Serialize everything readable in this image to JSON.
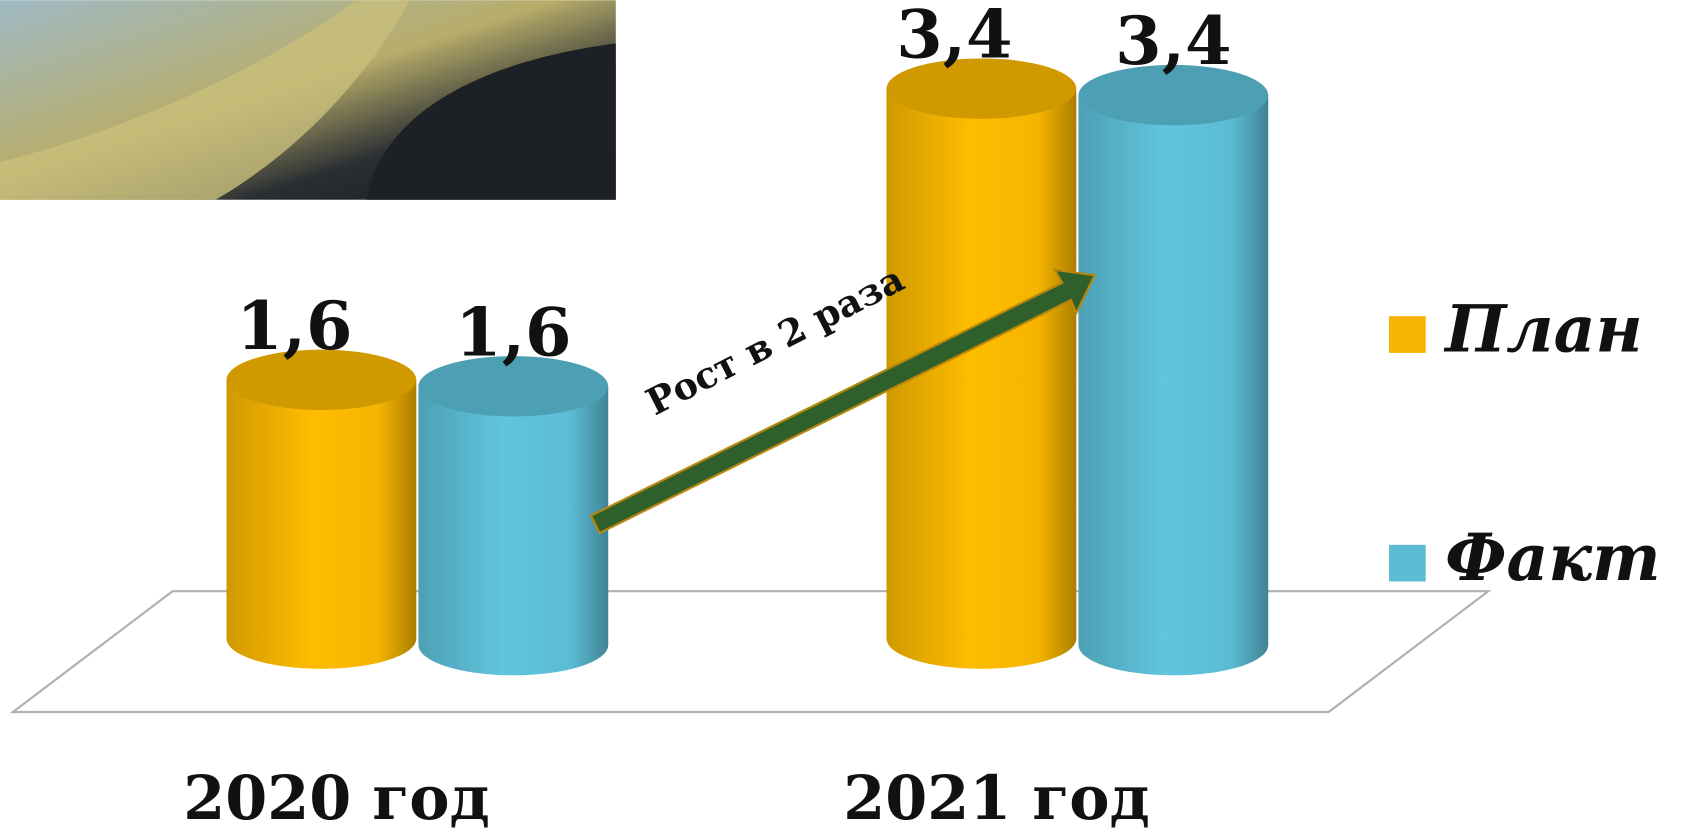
{
  "chart_data": {
    "type": "bar",
    "categories": [
      "2020 год",
      "2021 год"
    ],
    "series": [
      {
        "name": "План",
        "color": "#f5b400",
        "values": [
          1.6,
          3.4
        ],
        "value_labels": [
          "1,6",
          "3,4"
        ]
      },
      {
        "name": "Факт",
        "color": "#5bbcd4",
        "values": [
          1.6,
          3.4
        ],
        "value_labels": [
          "1,6",
          "3,4"
        ]
      }
    ],
    "annotation": "Рост в 2 раза",
    "legend": "right"
  }
}
